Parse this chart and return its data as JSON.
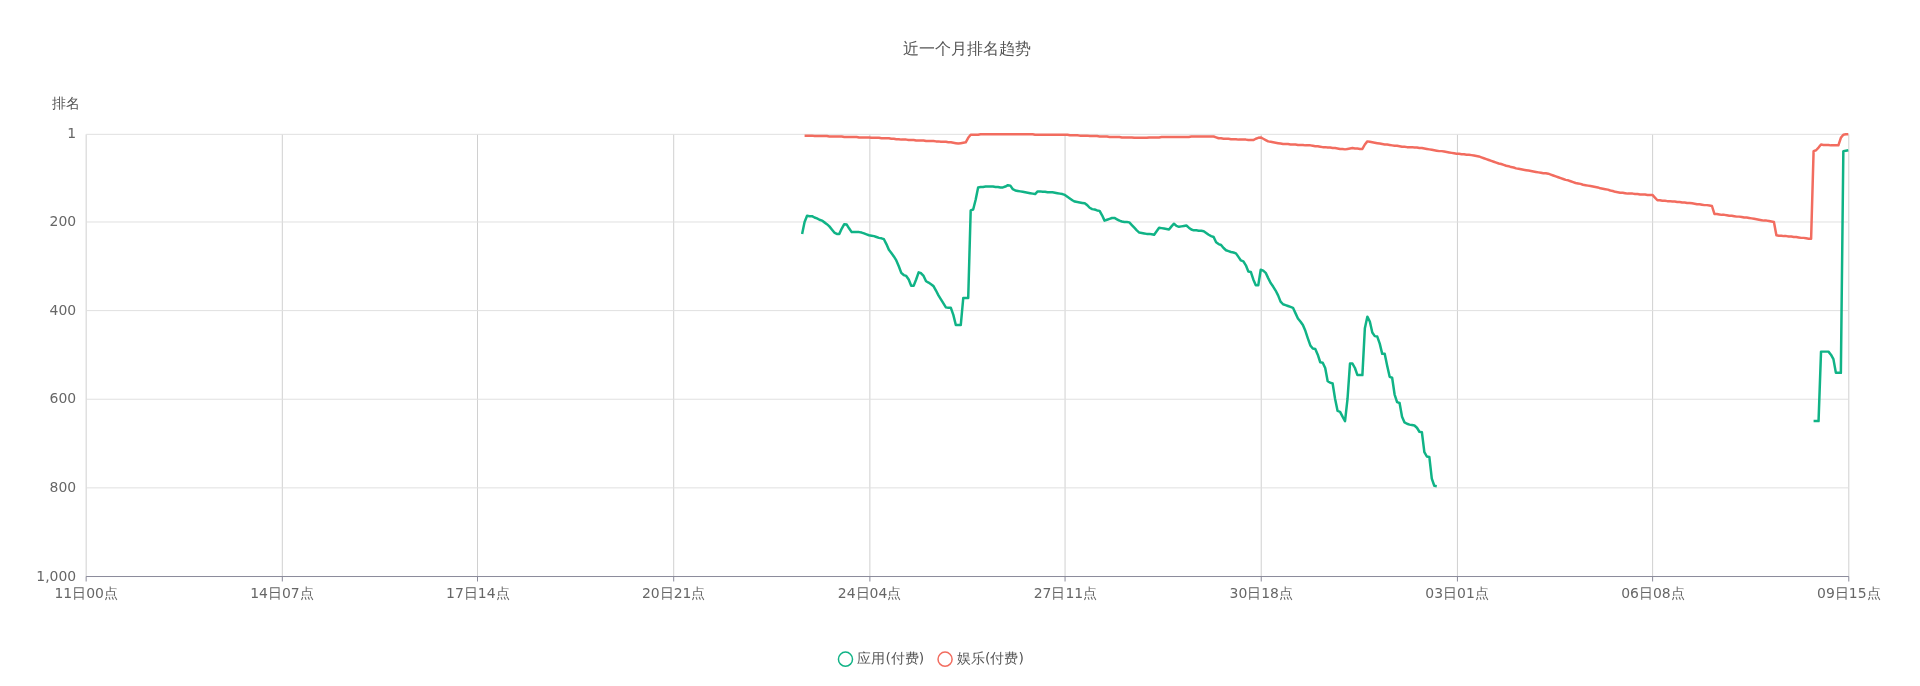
{
  "chart_data": {
    "type": "line",
    "title": "近一个月排名趋势",
    "ylabel": "排名",
    "categories": [
      "11日00点",
      null,
      null,
      null,
      null,
      null,
      null,
      null,
      null,
      null,
      null,
      null,
      null,
      null,
      null,
      null,
      null,
      null,
      null,
      null,
      null,
      null,
      null,
      null,
      null,
      null,
      null,
      null,
      null,
      null,
      null,
      null,
      null,
      null,
      null,
      null,
      null,
      null,
      null,
      null,
      null,
      null,
      null,
      null,
      null,
      null,
      null,
      null,
      null,
      null,
      null,
      null,
      null,
      null,
      null,
      null,
      null,
      null,
      null,
      null,
      null,
      null,
      null,
      null,
      null,
      null,
      null,
      null,
      null,
      null,
      null,
      null,
      null,
      null,
      null,
      null,
      null,
      null,
      null,
      "14日07点",
      null,
      null,
      null,
      null,
      null,
      null,
      null,
      null,
      null,
      null,
      null,
      null,
      null,
      null,
      null,
      null,
      null,
      null,
      null,
      null,
      null,
      null,
      null,
      null,
      null,
      null,
      null,
      null,
      null,
      null,
      null,
      null,
      null,
      null,
      null,
      null,
      null,
      null,
      null,
      null,
      null,
      null,
      null,
      null,
      null,
      null,
      null,
      null,
      null,
      null,
      null,
      null,
      null,
      null,
      null,
      null,
      null,
      null,
      null,
      null,
      null,
      null,
      null,
      null,
      null,
      null,
      null,
      null,
      null,
      null,
      null,
      null,
      null,
      null,
      null,
      null,
      null,
      null,
      "17日14点",
      null,
      null,
      null,
      null,
      null,
      null,
      null,
      null,
      null,
      null,
      null,
      null,
      null,
      null,
      null,
      null,
      null,
      null,
      null,
      null,
      null,
      null,
      null,
      null,
      null,
      null,
      null,
      null,
      null,
      null,
      null,
      null,
      null,
      null,
      null,
      null,
      null,
      null,
      null,
      null,
      null,
      null,
      null,
      null,
      null,
      null,
      null,
      null,
      null,
      null,
      null,
      null,
      null,
      null,
      null,
      null,
      null,
      null,
      null,
      null,
      null,
      null,
      null,
      null,
      null,
      null,
      null,
      null,
      null,
      null,
      null,
      null,
      null,
      null,
      null,
      null,
      null,
      null,
      "20日21点",
      null,
      null,
      null,
      null,
      null,
      null,
      null,
      null,
      null,
      null,
      null,
      null,
      null,
      null,
      null,
      null,
      null,
      null,
      null,
      null,
      null,
      null,
      null,
      null,
      null,
      null,
      null,
      null,
      null,
      null,
      null,
      null,
      null,
      null,
      null,
      null,
      null,
      null,
      null,
      null,
      null,
      null,
      null,
      null,
      null,
      null,
      null,
      null,
      null,
      null,
      null,
      null,
      null,
      null,
      null,
      null,
      null,
      null,
      null,
      null,
      null,
      null,
      null,
      null,
      null,
      null,
      null,
      null,
      null,
      null,
      null,
      null,
      null,
      null,
      null,
      null,
      null,
      null,
      "24日04点",
      null,
      null,
      null,
      null,
      null,
      null,
      null,
      null,
      null,
      null,
      null,
      null,
      null,
      null,
      null,
      null,
      null,
      null,
      null,
      null,
      null,
      null,
      null,
      null,
      null,
      null,
      null,
      null,
      null,
      null,
      null,
      null,
      null,
      null,
      null,
      null,
      null,
      null,
      null,
      null,
      null,
      null,
      null,
      null,
      null,
      null,
      null,
      null,
      null,
      null,
      null,
      null,
      null,
      null,
      null,
      null,
      null,
      null,
      null,
      null,
      null,
      null,
      null,
      null,
      null,
      null,
      null,
      null,
      null,
      null,
      null,
      null,
      null,
      null,
      null,
      null,
      null,
      null,
      "27日11点",
      null,
      null,
      null,
      null,
      null,
      null,
      null,
      null,
      null,
      null,
      null,
      null,
      null,
      null,
      null,
      null,
      null,
      null,
      null,
      null,
      null,
      null,
      null,
      null,
      null,
      null,
      null,
      null,
      null,
      null,
      null,
      null,
      null,
      null,
      null,
      null,
      null,
      null,
      null,
      null,
      null,
      null,
      null,
      null,
      null,
      null,
      null,
      null,
      null,
      null,
      null,
      null,
      null,
      null,
      null,
      null,
      null,
      null,
      null,
      null,
      null,
      null,
      null,
      null,
      null,
      null,
      null,
      null,
      null,
      null,
      null,
      null,
      null,
      null,
      null,
      null,
      null,
      null,
      "30日18点",
      null,
      null,
      null,
      null,
      null,
      null,
      null,
      null,
      null,
      null,
      null,
      null,
      null,
      null,
      null,
      null,
      null,
      null,
      null,
      null,
      null,
      null,
      null,
      null,
      null,
      null,
      null,
      null,
      null,
      null,
      null,
      null,
      null,
      null,
      null,
      null,
      null,
      null,
      null,
      null,
      null,
      null,
      null,
      null,
      null,
      null,
      null,
      null,
      null,
      null,
      null,
      null,
      null,
      null,
      null,
      null,
      null,
      null,
      null,
      null,
      null,
      null,
      null,
      null,
      null,
      null,
      null,
      null,
      null,
      null,
      null,
      null,
      null,
      null,
      null,
      null,
      null,
      null,
      "03日01点",
      null,
      null,
      null,
      null,
      null,
      null,
      null,
      null,
      null,
      null,
      null,
      null,
      null,
      null,
      null,
      null,
      null,
      null,
      null,
      null,
      null,
      null,
      null,
      null,
      null,
      null,
      null,
      null,
      null,
      null,
      null,
      null,
      null,
      null,
      null,
      null,
      null,
      null,
      null,
      null,
      null,
      null,
      null,
      null,
      null,
      null,
      null,
      null,
      null,
      null,
      null,
      null,
      null,
      null,
      null,
      null,
      null,
      null,
      null,
      null,
      null,
      null,
      null,
      null,
      null,
      null,
      null,
      null,
      null,
      null,
      null,
      null,
      null,
      null,
      null,
      null,
      null,
      null,
      "06日08点",
      null,
      null,
      null,
      null,
      null,
      null,
      null,
      null,
      null,
      null,
      null,
      null,
      null,
      null,
      null,
      null,
      null,
      null,
      null,
      null,
      null,
      null,
      null,
      null,
      null,
      null,
      null,
      null,
      null,
      null,
      null,
      null,
      null,
      null,
      null,
      null,
      null,
      null,
      null,
      null,
      null,
      null,
      null,
      null,
      null,
      null,
      null,
      null,
      null,
      null,
      null,
      null,
      null,
      null,
      null,
      null,
      null,
      null,
      null,
      null,
      null,
      null,
      null,
      null,
      null,
      null,
      null,
      null,
      null,
      null,
      null,
      null,
      null,
      null,
      null,
      null,
      null,
      null,
      "09日15点"
    ],
    "ylim": [
      1000,
      1
    ],
    "yticks": [
      1,
      200,
      400,
      600,
      800,
      {
        "value": 1000,
        "label": "1,000"
      }
    ],
    "grid": true,
    "legend": "bottom",
    "marker": "none",
    "line_style": "solid",
    "series": [
      {
        "name": "应用(付费)",
        "color": "#10b386",
        "values": [
          null,
          null,
          null,
          null,
          null,
          null,
          null,
          null,
          null,
          null,
          null,
          null,
          null,
          null,
          null,
          null,
          null,
          null,
          null,
          null,
          null,
          null,
          null,
          null,
          null,
          null,
          null,
          null,
          null,
          null,
          null,
          null,
          null,
          null,
          null,
          null,
          null,
          null,
          null,
          null,
          null,
          null,
          null,
          null,
          null,
          null,
          null,
          null,
          null,
          null,
          null,
          null,
          null,
          null,
          null,
          null,
          null,
          null,
          null,
          null,
          null,
          null,
          null,
          null,
          null,
          null,
          null,
          null,
          null,
          null,
          null,
          null,
          null,
          null,
          null,
          null,
          null,
          null,
          null,
          null,
          null,
          null,
          null,
          null,
          null,
          null,
          null,
          null,
          null,
          null,
          null,
          null,
          null,
          null,
          null,
          null,
          null,
          null,
          null,
          null,
          null,
          null,
          null,
          null,
          null,
          null,
          null,
          null,
          null,
          null,
          null,
          null,
          null,
          null,
          null,
          null,
          null,
          null,
          null,
          null,
          null,
          null,
          null,
          null,
          null,
          null,
          null,
          null,
          null,
          null,
          null,
          null,
          null,
          null,
          null,
          null,
          null,
          null,
          null,
          null,
          null,
          null,
          null,
          null,
          null,
          null,
          null,
          null,
          null,
          null,
          null,
          null,
          null,
          null,
          null,
          null,
          null,
          null,
          null,
          null,
          null,
          null,
          null,
          null,
          null,
          null,
          null,
          null,
          null,
          null,
          null,
          null,
          null,
          null,
          null,
          null,
          null,
          null,
          null,
          null,
          null,
          null,
          null,
          null,
          null,
          null,
          null,
          null,
          null,
          null,
          null,
          null,
          null,
          null,
          null,
          null,
          null,
          null,
          null,
          null,
          null,
          null,
          null,
          null,
          null,
          null,
          null,
          null,
          null,
          null,
          null,
          null,
          null,
          null,
          null,
          null,
          null,
          null,
          null,
          null,
          null,
          null,
          null,
          null,
          null,
          null,
          null,
          null,
          null,
          null,
          null,
          null,
          null,
          null,
          null,
          null,
          null,
          null,
          null,
          null,
          null,
          null,
          null,
          null,
          null,
          null,
          null,
          null,
          null,
          null,
          null,
          null,
          null,
          null,
          null,
          null,
          null,
          null,
          null,
          null,
          null,
          null,
          null,
          null,
          null,
          null,
          null,
          null,
          null,
          null,
          null,
          null,
          null,
          null,
          null,
          null,
          null,
          null,
          null,
          null,
          null,
          null,
          null,
          null,
          null,
          null,
          null,
          null,
          null,
          227,
          200,
          186,
          187,
          187,
          190,
          192,
          195,
          197,
          201,
          205,
          210,
          217,
          224,
          227,
          227,
          215,
          205,
          206,
          215,
          223,
          223,
          223,
          223,
          224,
          226,
          228,
          230,
          231,
          232,
          234,
          236,
          237,
          239,
          250,
          263,
          270,
          278,
          287,
          300,
          315,
          320,
          322,
          330,
          344,
          344,
          330,
          314,
          316,
          322,
          334,
          337,
          341,
          345,
          355,
          366,
          375,
          384,
          393,
          394,
          394,
          410,
          433,
          433,
          433,
          372,
          372,
          372,
          174,
          172,
          150,
          122,
          121,
          121,
          120,
          120,
          120,
          120,
          121,
          121,
          122,
          122,
          120,
          117,
          118,
          126,
          129,
          130,
          131,
          132,
          133,
          134,
          135,
          136,
          137,
          131,
          131,
          132,
          132,
          133,
          133,
          133,
          134,
          135,
          136,
          137,
          139,
          143,
          147,
          151,
          154,
          155,
          156,
          157,
          158,
          162,
          168,
          171,
          172,
          174,
          175,
          185,
          197,
          195,
          193,
          191,
          191,
          194,
          197,
          199,
          200,
          200,
          201,
          207,
          213,
          219,
          224,
          225,
          226,
          227,
          227,
          228,
          229,
          221,
          213,
          214,
          215,
          216,
          217,
          210,
          204,
          209,
          211,
          210,
          209,
          208,
          213,
          217,
          219,
          219,
          220,
          220,
          221,
          225,
          229,
          232,
          234,
          246,
          250,
          252,
          259,
          264,
          266,
          268,
          269,
          271,
          279,
          287,
          289,
          298,
          312,
          313,
          330,
          343,
          343,
          308,
          310,
          315,
          327,
          338,
          346,
          355,
          366,
          380,
          386,
          388,
          390,
          392,
          394,
          406,
          418,
          425,
          433,
          446,
          463,
          479,
          486,
          487,
          500,
          517,
          518,
          530,
          560,
          563,
          565,
          600,
          627,
          629,
          640,
          650,
          600,
          520,
          520,
          530,
          546,
          546,
          546,
          440,
          414,
          425,
          450,
          458,
          459,
          475,
          498,
          498,
          525,
          550,
          552,
          590,
          607,
          609,
          640,
          653,
          656,
          658,
          659,
          660,
          665,
          674,
          675,
          720,
          730,
          731,
          780,
          796,
          797,
          null,
          null,
          null,
          null,
          null,
          null,
          null,
          null,
          null,
          null,
          null,
          null,
          null,
          null,
          null,
          null,
          null,
          null,
          null,
          null,
          null,
          null,
          null,
          null,
          null,
          null,
          null,
          null,
          null,
          null,
          null,
          null,
          null,
          null,
          null,
          null,
          null,
          null,
          null,
          null,
          null,
          null,
          null,
          null,
          null,
          null,
          null,
          null,
          null,
          null,
          null,
          null,
          null,
          null,
          null,
          null,
          null,
          null,
          null,
          null,
          null,
          null,
          null,
          null,
          null,
          null,
          null,
          null,
          null,
          null,
          null,
          null,
          null,
          null,
          null,
          null,
          null,
          null,
          null,
          null,
          null,
          null,
          null,
          null,
          null,
          null,
          null,
          null,
          null,
          null,
          null,
          null,
          null,
          null,
          null,
          null,
          null,
          null,
          null,
          null,
          null,
          null,
          null,
          null,
          null,
          null,
          null,
          null,
          null,
          null,
          null,
          null,
          null,
          null,
          null,
          null,
          null,
          null,
          null,
          null,
          null,
          null,
          null,
          null,
          null,
          null,
          null,
          null,
          null,
          null,
          null,
          null,
          null,
          null,
          null,
          null,
          null,
          null,
          null,
          null,
          null,
          null,
          null,
          null,
          null,
          null,
          null,
          null,
          null,
          null,
          null,
          650,
          650,
          650,
          493,
          493,
          493,
          493,
          500,
          510,
          541,
          541,
          541,
          40,
          39,
          38
        ]
      },
      {
        "name": "娱乐(付费)",
        "color": "#f26c5f",
        "values": [
          null,
          null,
          null,
          null,
          null,
          null,
          null,
          null,
          null,
          null,
          null,
          null,
          null,
          null,
          null,
          null,
          null,
          null,
          null,
          null,
          null,
          null,
          null,
          null,
          null,
          null,
          null,
          null,
          null,
          null,
          null,
          null,
          null,
          null,
          null,
          null,
          null,
          null,
          null,
          null,
          null,
          null,
          null,
          null,
          null,
          null,
          null,
          null,
          null,
          null,
          null,
          null,
          null,
          null,
          null,
          null,
          null,
          null,
          null,
          null,
          null,
          null,
          null,
          null,
          null,
          null,
          null,
          null,
          null,
          null,
          null,
          null,
          null,
          null,
          null,
          null,
          null,
          null,
          null,
          null,
          null,
          null,
          null,
          null,
          null,
          null,
          null,
          null,
          null,
          null,
          null,
          null,
          null,
          null,
          null,
          null,
          null,
          null,
          null,
          null,
          null,
          null,
          null,
          null,
          null,
          null,
          null,
          null,
          null,
          null,
          null,
          null,
          null,
          null,
          null,
          null,
          null,
          null,
          null,
          null,
          null,
          null,
          null,
          null,
          null,
          null,
          null,
          null,
          null,
          null,
          null,
          null,
          null,
          null,
          null,
          null,
          null,
          null,
          null,
          null,
          null,
          null,
          null,
          null,
          null,
          null,
          null,
          null,
          null,
          null,
          null,
          null,
          null,
          null,
          null,
          null,
          null,
          null,
          null,
          null,
          null,
          null,
          null,
          null,
          null,
          null,
          null,
          null,
          null,
          null,
          null,
          null,
          null,
          null,
          null,
          null,
          null,
          null,
          null,
          null,
          null,
          null,
          null,
          null,
          null,
          null,
          null,
          null,
          null,
          null,
          null,
          null,
          null,
          null,
          null,
          null,
          null,
          null,
          null,
          null,
          null,
          null,
          null,
          null,
          null,
          null,
          null,
          null,
          null,
          null,
          null,
          null,
          null,
          null,
          null,
          null,
          null,
          null,
          null,
          null,
          null,
          null,
          null,
          null,
          null,
          null,
          null,
          null,
          null,
          null,
          null,
          null,
          null,
          null,
          null,
          null,
          null,
          null,
          null,
          null,
          null,
          null,
          null,
          null,
          null,
          null,
          null,
          null,
          null,
          null,
          null,
          null,
          null,
          null,
          null,
          null,
          null,
          null,
          null,
          null,
          null,
          null,
          null,
          null,
          null,
          null,
          null,
          null,
          null,
          null,
          null,
          null,
          null,
          null,
          null,
          null,
          null,
          null,
          null,
          null,
          null,
          null,
          null,
          null,
          null,
          null,
          null,
          null,
          null,
          null,
          5,
          5,
          5,
          5,
          6,
          6,
          6,
          6,
          6,
          6,
          7,
          7,
          7,
          7,
          7,
          7,
          8,
          8,
          8,
          8,
          8,
          8,
          9,
          9,
          9,
          9,
          9,
          10,
          10,
          10,
          10,
          11,
          11,
          11,
          11,
          12,
          12,
          13,
          13,
          14,
          14,
          14,
          15,
          15,
          15,
          16,
          16,
          16,
          16,
          17,
          17,
          17,
          17,
          18,
          18,
          19,
          19,
          19,
          20,
          20,
          21,
          22,
          23,
          22,
          21,
          20,
          10,
          3,
          3,
          3,
          3,
          2,
          2,
          2,
          2,
          2,
          2,
          2,
          2,
          2,
          2,
          2,
          2,
          2,
          2,
          2,
          2,
          2,
          2,
          2,
          2,
          2,
          2,
          3,
          3,
          3,
          3,
          3,
          3,
          3,
          3,
          3,
          3,
          3,
          3,
          3,
          3,
          4,
          4,
          4,
          4,
          5,
          5,
          5,
          5,
          6,
          6,
          6,
          6,
          7,
          7,
          7,
          7,
          8,
          8,
          8,
          8,
          8,
          9,
          9,
          9,
          9,
          9,
          10,
          10,
          10,
          10,
          10,
          10,
          9,
          9,
          9,
          9,
          9,
          8,
          8,
          8,
          8,
          8,
          8,
          8,
          8,
          8,
          8,
          8,
          8,
          7,
          7,
          7,
          7,
          7,
          7,
          7,
          7,
          7,
          7,
          9,
          11,
          11,
          12,
          12,
          12,
          13,
          13,
          13,
          14,
          14,
          14,
          14,
          15,
          15,
          15,
          12,
          10,
          9,
          12,
          15,
          18,
          19,
          20,
          21,
          22,
          23,
          24,
          24,
          24,
          25,
          25,
          25,
          26,
          26,
          26,
          27,
          27,
          27,
          28,
          29,
          29,
          30,
          31,
          31,
          32,
          32,
          33,
          33,
          34,
          35,
          35,
          36,
          35,
          34,
          33,
          34,
          34,
          35,
          35,
          25,
          18,
          19,
          20,
          21,
          22,
          23,
          24,
          25,
          25,
          26,
          27,
          28,
          28,
          29,
          30,
          30,
          31,
          31,
          31,
          32,
          32,
          33,
          33,
          34,
          35,
          36,
          37,
          38,
          39,
          40,
          40,
          41,
          42,
          43,
          44,
          45,
          46,
          46,
          47,
          47,
          48,
          48,
          49,
          50,
          51,
          52,
          54,
          56,
          58,
          60,
          62,
          64,
          66,
          68,
          69,
          71,
          73,
          74,
          76,
          77,
          79,
          80,
          81,
          82,
          83,
          84,
          85,
          86,
          87,
          88,
          89,
          90,
          90,
          91,
          93,
          95,
          97,
          99,
          101,
          103,
          105,
          106,
          108,
          110,
          112,
          113,
          114,
          116,
          117,
          118,
          119,
          120,
          121,
          122,
          124,
          125,
          126,
          127,
          129,
          130,
          132,
          133,
          134,
          134,
          135,
          136,
          136,
          136,
          137,
          137,
          138,
          138,
          138,
          139,
          139,
          139,
          145,
          151,
          151,
          152,
          152,
          153,
          153,
          154,
          154,
          155,
          155,
          156,
          156,
          157,
          157,
          158,
          159,
          160,
          160,
          161,
          162,
          162,
          163,
          164,
          182,
          182,
          183,
          184,
          184,
          185,
          186,
          186,
          187,
          188,
          188,
          189,
          190,
          190,
          191,
          192,
          193,
          194,
          195,
          196,
          197,
          197,
          198,
          199,
          200,
          230,
          231,
          231,
          232,
          232,
          233,
          233,
          234,
          234,
          235,
          236,
          236,
          237,
          238,
          238,
          40,
          38,
          32,
          25,
          26,
          26,
          26,
          27,
          27,
          27,
          27,
          10,
          3,
          2,
          2
        ]
      }
    ]
  }
}
